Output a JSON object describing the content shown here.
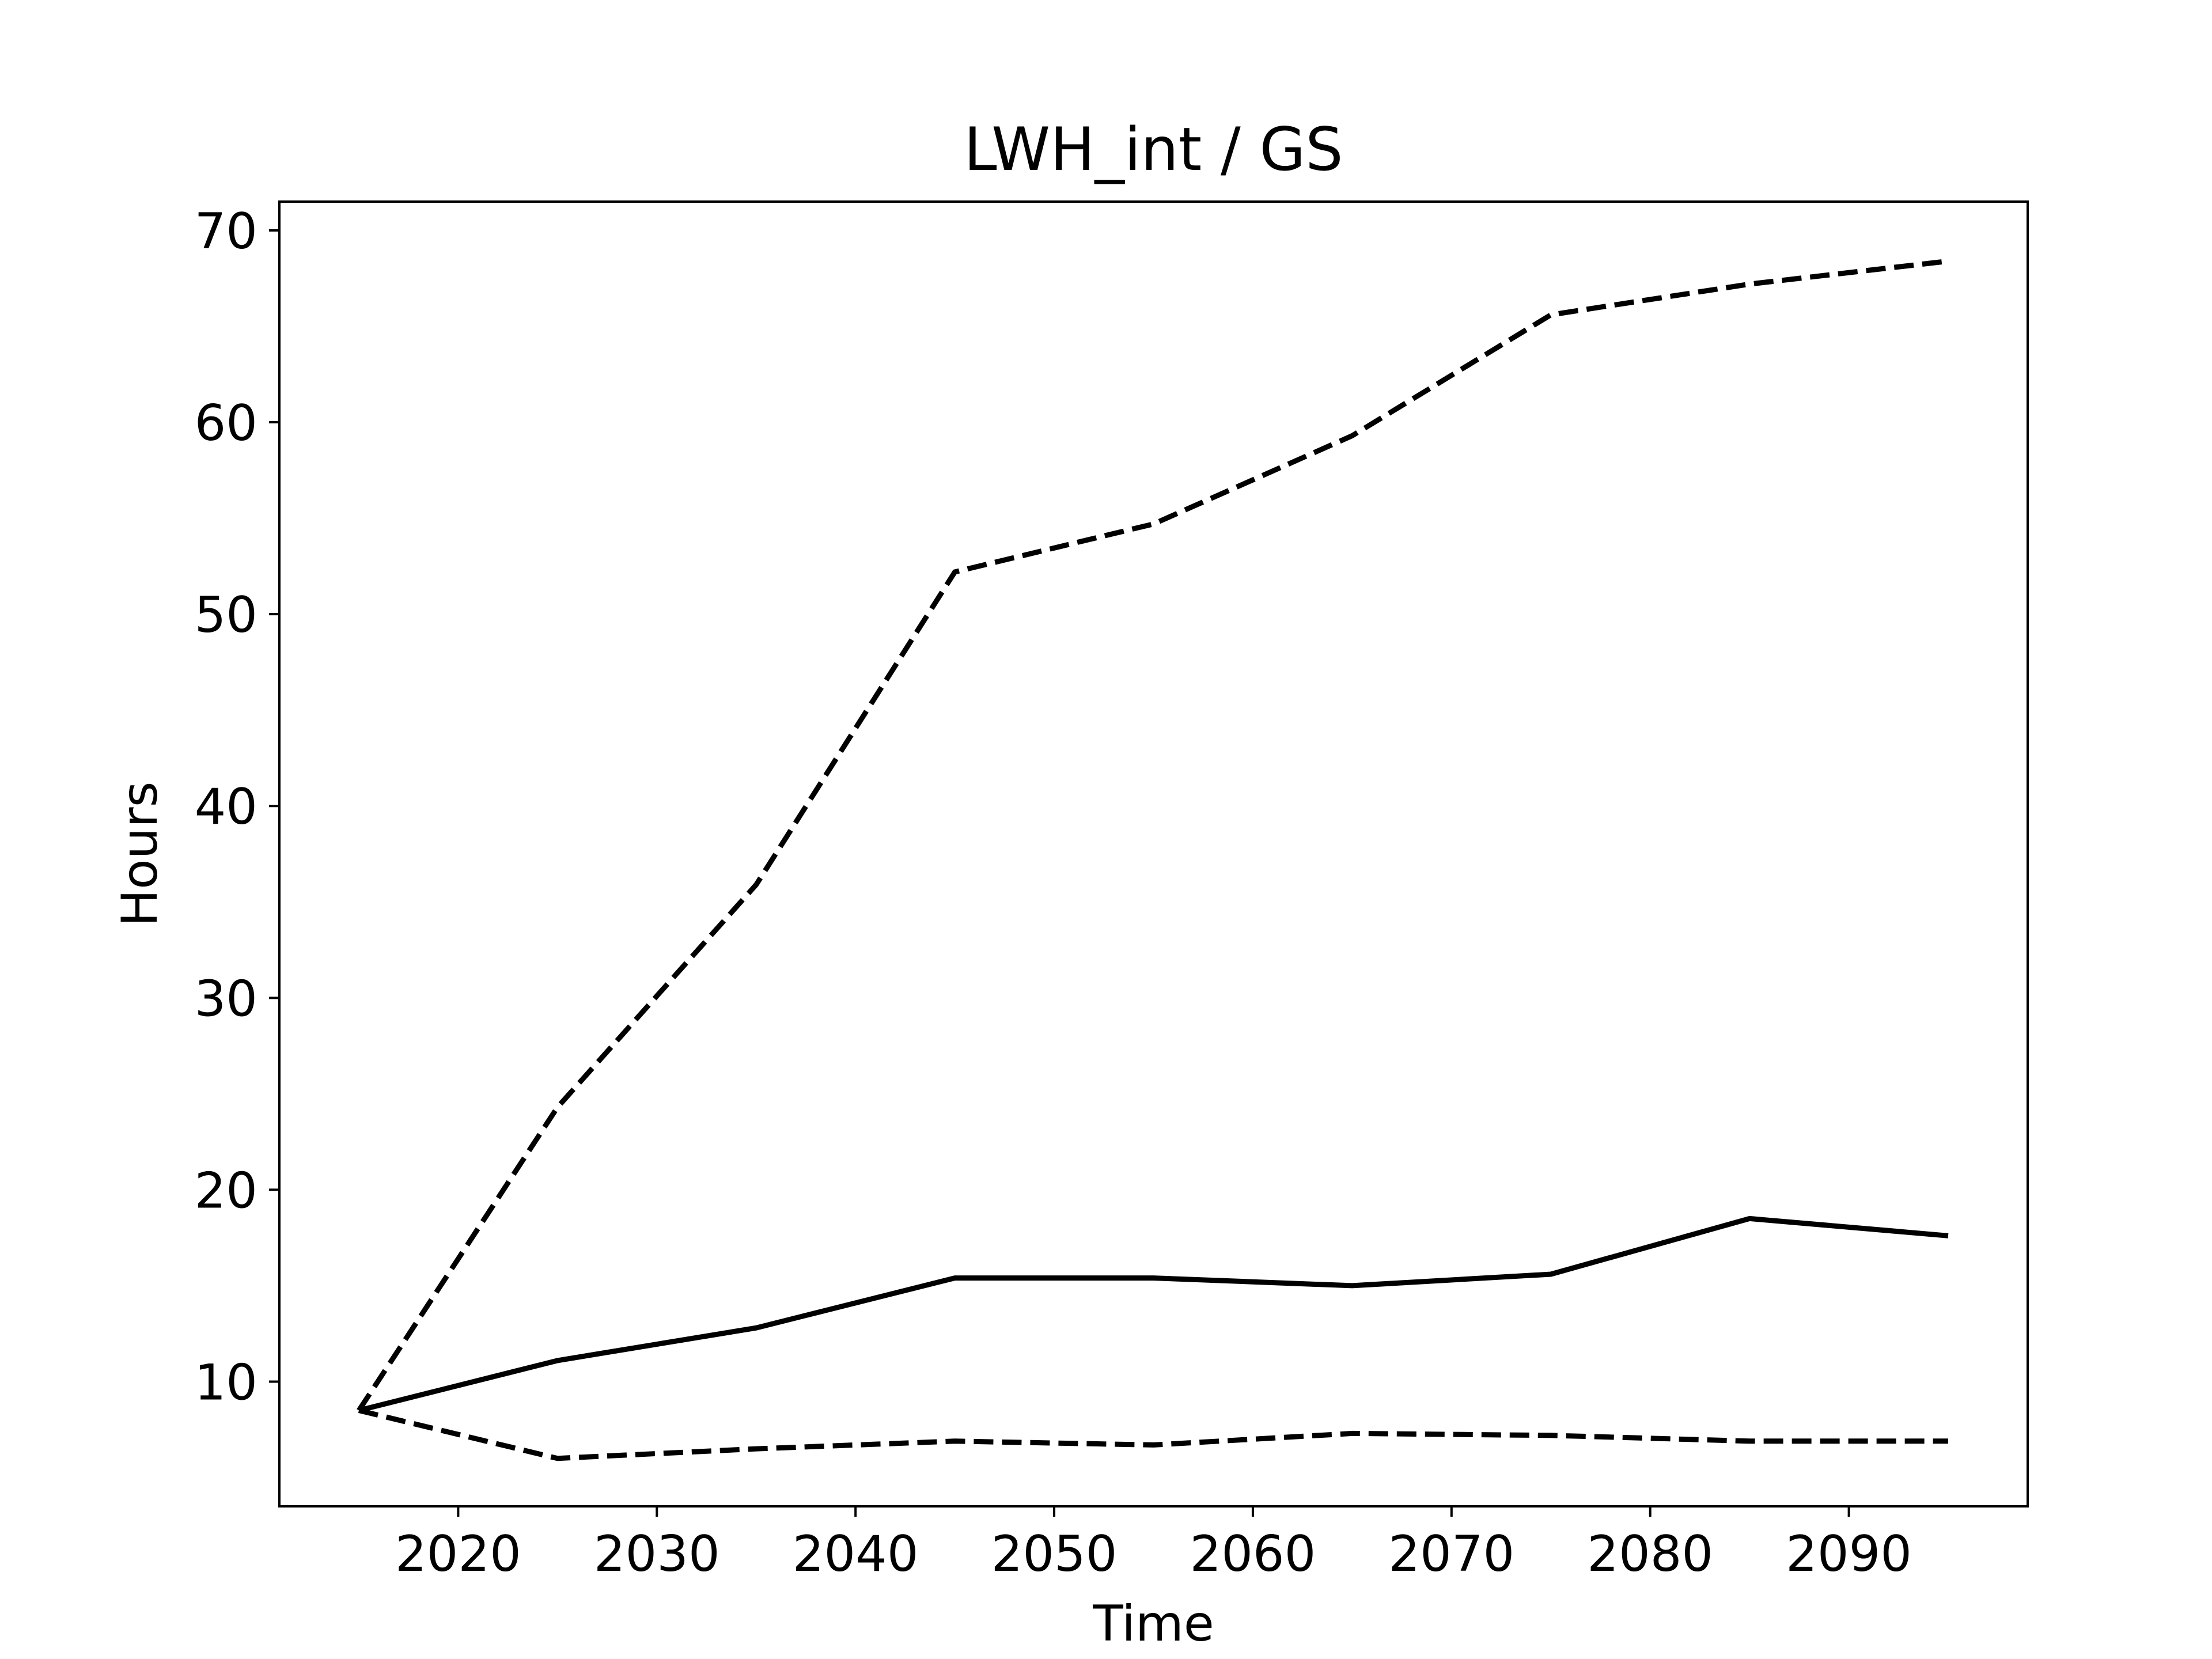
{
  "chart_data": {
    "type": "line",
    "title": "LWH_int / GS",
    "xlabel": "Time",
    "ylabel": "Hours",
    "xlim": [
      2011,
      2099
    ],
    "ylim": [
      3.5,
      71.5
    ],
    "x_ticks": [
      2020,
      2030,
      2040,
      2050,
      2060,
      2070,
      2080,
      2090
    ],
    "y_ticks": [
      10,
      20,
      30,
      40,
      50,
      60,
      70
    ],
    "grid": false,
    "legend": "none",
    "x": [
      2015,
      2025,
      2035,
      2045,
      2055,
      2065,
      2075,
      2085,
      2095
    ],
    "series": [
      {
        "style": "solid",
        "color": "#000000",
        "values": [
          8.5,
          11.1,
          12.8,
          15.4,
          15.4,
          15.0,
          15.6,
          18.5,
          17.6
        ]
      },
      {
        "style": "dashed",
        "color": "#000000",
        "values": [
          8.5,
          24.3,
          35.9,
          52.2,
          54.7,
          59.3,
          65.6,
          67.2,
          68.4
        ]
      },
      {
        "style": "dashed",
        "color": "#000000",
        "values": [
          8.5,
          6.0,
          6.5,
          6.9,
          6.7,
          7.3,
          7.2,
          6.9,
          6.9
        ]
      }
    ]
  }
}
